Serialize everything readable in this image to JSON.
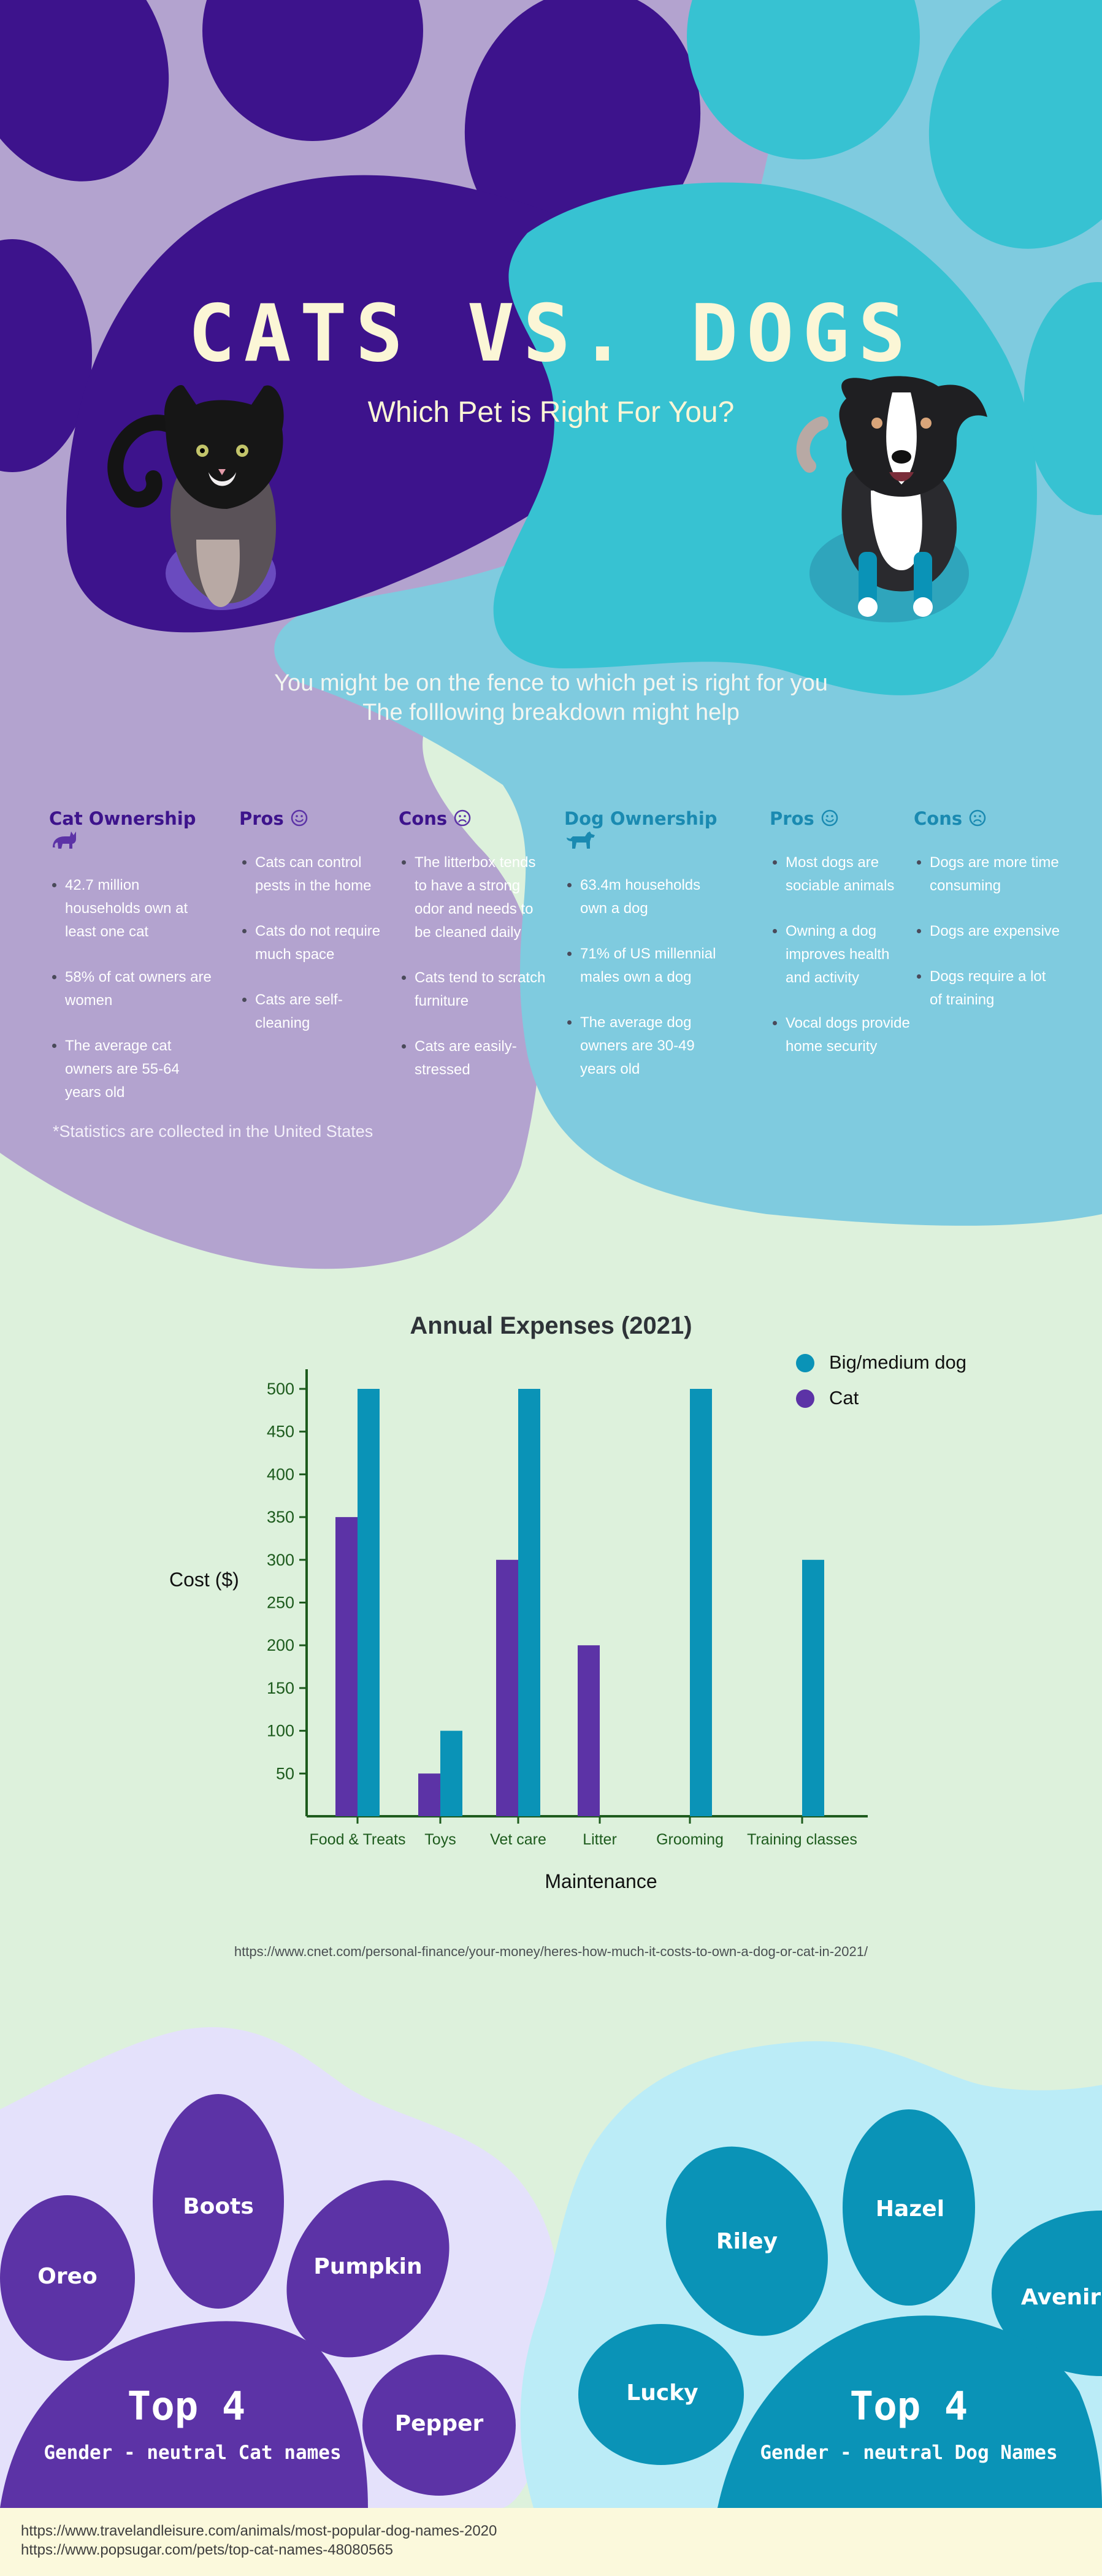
{
  "header": {
    "title_part1": "CATS VS.",
    "title_part2": "DOGS",
    "subtitle": "Which Pet is Right For You?",
    "intro_line1": "You might be on the fence to which pet is right for you",
    "intro_line2": "The folllowing breakdown might help"
  },
  "colors": {
    "cat_purple": "#3d138c",
    "dog_teal": "#37c2d2",
    "lavender": "#b3a3cf",
    "light_blue": "#7fcbdf",
    "mint": "#ddf1dc",
    "cream": "#fbf6d6"
  },
  "cat_section": {
    "ownership_heading": "Cat Ownership",
    "ownership_icon": "cat-icon",
    "ownership_items": [
      "42.7 million households own at least one cat",
      "58% of cat owners are women",
      "The average cat owners are 55-64 years old"
    ],
    "pros_heading": "Pros",
    "pros_icon": "smiley-icon",
    "pros_items": [
      "Cats can control pests in the home",
      "Cats do not require much space",
      "Cats are self-cleaning"
    ],
    "cons_heading": "Cons",
    "cons_icon": "frowny-icon",
    "cons_items": [
      "The litterbox tends to have a strong odor and needs to be cleaned daily",
      "Cats tend to scratch furniture",
      "Cats are easily-stressed"
    ]
  },
  "dog_section": {
    "ownership_heading": "Dog Ownership",
    "ownership_icon": "dog-icon",
    "ownership_items": [
      "63.4m households own a dog",
      "71% of US millennial males own a dog",
      "The average dog owners are 30-49 years old"
    ],
    "pros_heading": "Pros",
    "pros_icon": "smiley-icon",
    "pros_items": [
      "Most dogs are sociable animals",
      "Owning a dog improves health and activity",
      "Vocal dogs provide home security"
    ],
    "cons_heading": "Cons",
    "cons_icon": "frowny-icon",
    "cons_items": [
      "Dogs are more time consuming",
      "Dogs are expensive",
      "Dogs require a lot of training"
    ]
  },
  "stats_note": "*Statistics are collected in the United States",
  "chart_data": {
    "type": "bar",
    "title": "Annual Expenses (2021)",
    "xlabel": "Maintenance",
    "ylabel": "Cost ($)",
    "categories": [
      "Food & Treats",
      "Toys",
      "Vet care",
      "Litter",
      "Grooming",
      "Training classes"
    ],
    "series": [
      {
        "name": "Cat",
        "color": "#5c33a6",
        "values": [
          350,
          50,
          300,
          200,
          0,
          0
        ]
      },
      {
        "name": "Big/medium dog",
        "color": "#0a93b7",
        "values": [
          500,
          100,
          500,
          0,
          500,
          300
        ]
      }
    ],
    "yticks": [
      50,
      100,
      150,
      200,
      250,
      300,
      350,
      400,
      450,
      500
    ],
    "ylim": [
      0,
      520
    ],
    "legend_placement": "top-right",
    "grid": false
  },
  "chart_source": "https://www.cnet.com/personal-finance/your-money/heres-how-much-it-costs-to-own-a-dog-or-cat-in-2021/",
  "cat_names": {
    "names": [
      "Oreo",
      "Boots",
      "Pumpkin",
      "Pepper"
    ],
    "heading": "Top 4",
    "subheading": "Gender - neutral Cat names"
  },
  "dog_names": {
    "names": [
      "Riley",
      "Hazel",
      "Avenir",
      "Lucky"
    ],
    "heading": "Top 4",
    "subheading": "Gender - neutral Dog Names"
  },
  "footer": {
    "source_line1": "https://www.travelandleisure.com/animals/most-popular-dog-names-2020",
    "source_line2": "https://www.popsugar.com/pets/top-cat-names-48080565"
  }
}
